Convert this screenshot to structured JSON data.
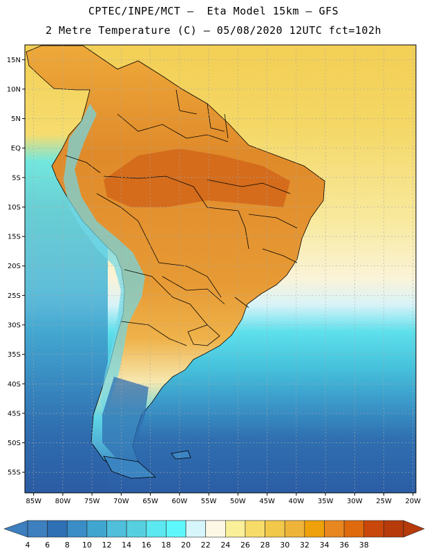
{
  "header": {
    "line1": "CPTEC/INPE/MCT –  Eta Model 15km – GFS",
    "line2": "2 Metre Temperature (C) – 05/08/2020 12UTC fct=102h"
  },
  "axes": {
    "lat_labels": [
      "15N",
      "10N",
      "5N",
      "EQ",
      "5S",
      "10S",
      "15S",
      "20S",
      "25S",
      "30S",
      "35S",
      "40S",
      "45S",
      "50S",
      "55S"
    ],
    "lat_values": [
      15,
      10,
      5,
      0,
      -5,
      -10,
      -15,
      -20,
      -25,
      -30,
      -35,
      -40,
      -45,
      -50,
      -55
    ],
    "lon_labels": [
      "85W",
      "80W",
      "75W",
      "70W",
      "65W",
      "60W",
      "55W",
      "50W",
      "45W",
      "40W",
      "35W",
      "30W",
      "25W",
      "20W"
    ],
    "lon_values": [
      -85,
      -80,
      -75,
      -70,
      -65,
      -60,
      -55,
      -50,
      -45,
      -40,
      -35,
      -30,
      -25,
      -20
    ],
    "lat_range": [
      -58.5,
      17.5
    ],
    "lon_range": [
      -86.5,
      -19.5
    ]
  },
  "colorbar": {
    "labels": [
      "4",
      "6",
      "8",
      "10",
      "12",
      "14",
      "16",
      "18",
      "20",
      "22",
      "24",
      "26",
      "28",
      "30",
      "32",
      "34",
      "36",
      "38"
    ],
    "colors": [
      "#3d7fbf",
      "#2f6fb3",
      "#3a8dc6",
      "#40a6d0",
      "#4fbfdc",
      "#56d0e0",
      "#5ce8f0",
      "#5ef8fc",
      "#d6f6fb",
      "#fdf8e6",
      "#fbf09a",
      "#f7dc6a",
      "#f2c84a",
      "#eeb43a",
      "#eea10a",
      "#e8861f",
      "#df6a0d",
      "#c9470a",
      "#b63a0a"
    ],
    "left_arrow_color": "#3d7fbf",
    "right_arrow_color": "#b63a0a"
  },
  "map": {
    "land_hot_color": "#e08a2a",
    "land_core_color": "#d2691b",
    "ocean_warm_color": "#f6d35b",
    "ocean_cool_color": "#40b8d6",
    "ocean_cold_color": "#2d63a8",
    "border_color": "#000000",
    "grid_color": "#9a9a9a"
  }
}
